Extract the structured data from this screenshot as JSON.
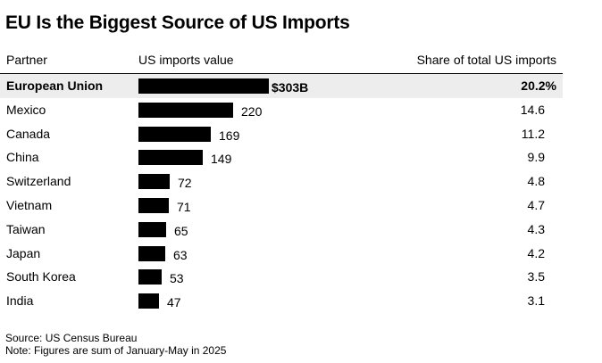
{
  "title": "EU Is the Biggest Source of US Imports",
  "columns": {
    "partner": "Partner",
    "value": "US imports value",
    "share": "Share of total US imports"
  },
  "source": "Source: US Census Bureau",
  "note": "Note: Figures are sum of January-May in 2025",
  "highlight_index": 0,
  "chart_data": {
    "type": "bar",
    "orientation": "horizontal",
    "title": "EU Is the Biggest Source of US Imports",
    "categories": [
      "European Union",
      "Mexico",
      "Canada",
      "China",
      "Switzerland",
      "Vietnam",
      "Taiwan",
      "Japan",
      "South Korea",
      "India"
    ],
    "values": [
      303,
      220,
      169,
      149,
      72,
      71,
      65,
      63,
      53,
      47
    ],
    "value_labels": [
      "$303B",
      "220",
      "169",
      "149",
      "72",
      "71",
      "65",
      "63",
      "53",
      "47"
    ],
    "share_labels": [
      "20.2%",
      "14.6",
      "11.2",
      "9.9",
      "4.8",
      "4.7",
      "4.3",
      "4.2",
      "3.5",
      "3.1"
    ],
    "shares": [
      20.2,
      14.6,
      11.2,
      9.9,
      4.8,
      4.7,
      4.3,
      4.2,
      3.5,
      3.1
    ],
    "bar_color": "#000000",
    "highlight_color": "#ededed",
    "grid": false
  }
}
